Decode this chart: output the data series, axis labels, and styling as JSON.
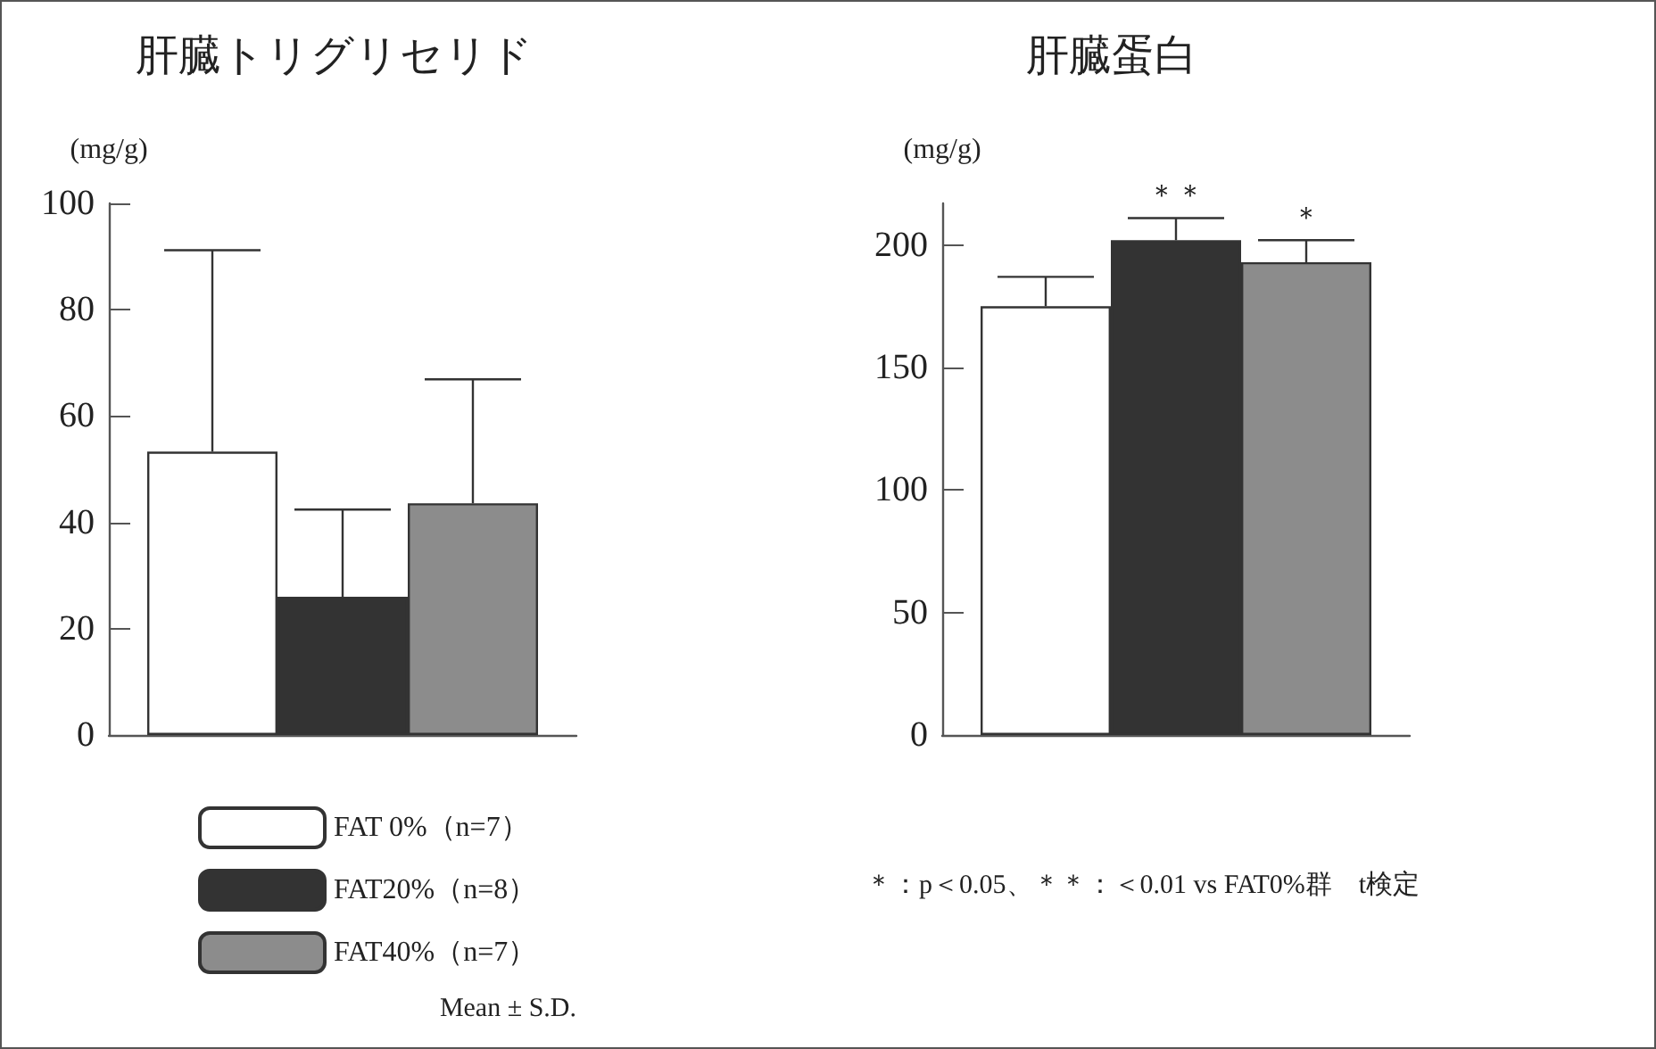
{
  "chart_data": [
    {
      "type": "bar",
      "title": "肝臓トリグリセリド",
      "ylabel": "(mg/g)",
      "categories": [
        null
      ],
      "ylim": [
        0,
        100
      ],
      "yticks": [
        0,
        20,
        40,
        60,
        80,
        100
      ],
      "grid": false,
      "legend": "bottom left",
      "series": [
        {
          "name": "FAT 0%（n=7）",
          "color": "#ffffff",
          "values": [
            53.3
          ],
          "errors": [
            [
              53.3,
              91.2
            ]
          ]
        },
        {
          "name": "FAT20%（n=8）",
          "color": "#333333",
          "values": [
            26
          ],
          "errors": [
            [
              26,
              42.4
            ]
          ]
        },
        {
          "name": "FAT40%（n=7）",
          "color": "#8c8c8c",
          "values": [
            43.6
          ],
          "errors": [
            [
              43.6,
              66.9
            ]
          ]
        }
      ],
      "annotations": [
        "Mean ± S.D."
      ]
    },
    {
      "type": "bar",
      "title": "肝臓蛋白",
      "ylabel": "(mg/g)",
      "categories": [
        null
      ],
      "ylim": [
        0,
        217
      ],
      "yticks": [
        0,
        50,
        100,
        150,
        200
      ],
      "grid": false,
      "legend": false,
      "series": [
        {
          "color": "#ffffff",
          "values": [
            175
          ],
          "errors": [
            [
              175,
              187
            ]
          ]
        },
        {
          "color": "#333333",
          "values": [
            202
          ],
          "errors": [
            [
              202,
              211
            ]
          ]
        },
        {
          "color": "#8c8c8c",
          "values": [
            193
          ],
          "errors": [
            [
              193,
              202
            ]
          ]
        }
      ],
      "annotations": [
        "＊＊",
        "＊",
        "＊：p＜0.05、＊＊：＜0.01 vs FAT0%群　t検定"
      ]
    }
  ]
}
